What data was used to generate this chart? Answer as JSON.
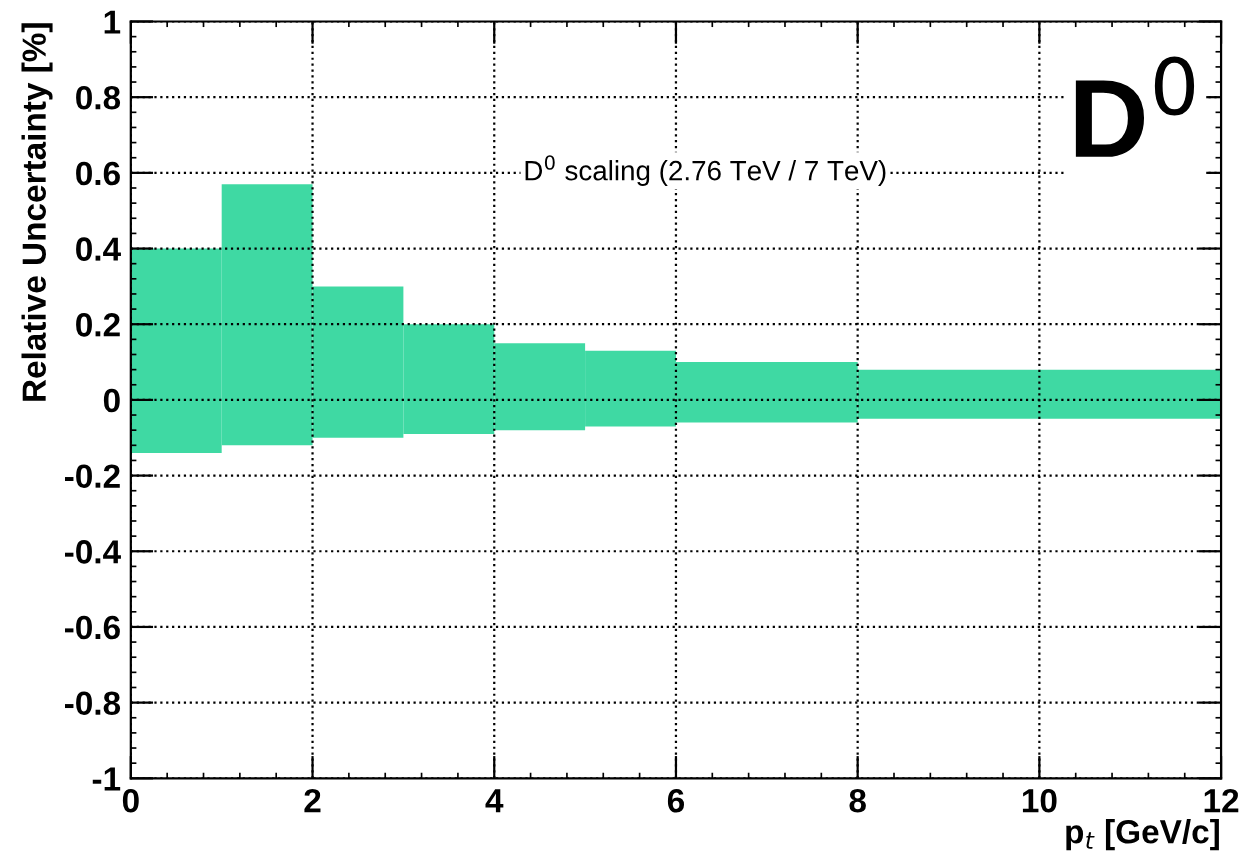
{
  "chart_data": {
    "type": "histogram",
    "bins": [
      0,
      1,
      2,
      3,
      4,
      5,
      6,
      8,
      12
    ],
    "values": [
      0.54,
      0.69,
      0.4,
      0.29,
      0.23,
      0.2,
      0.16,
      0.13
    ],
    "base": [
      -0.14,
      -0.12,
      -0.1,
      -0.09,
      -0.08,
      -0.07,
      -0.06,
      -0.05
    ],
    "color": "#3fd9a3",
    "xlabel": "p$_{t}$ [GeV/c]",
    "ylabel": "Relative Uncertainty [%]",
    "annotations": [
      "D$^{0}$ scaling (2.76 TeV / 7 TeV)",
      "D$^{0}$"
    ],
    "xlim": [
      0,
      12
    ],
    "ylim": [
      -1,
      1
    ],
    "xticks": [
      0,
      2,
      4,
      6,
      8,
      10,
      12
    ],
    "yticks": [
      -1,
      -0.8,
      -0.6,
      -0.4,
      -0.2,
      0,
      0.2,
      0.4,
      0.6,
      0.8,
      1
    ],
    "grid": true
  }
}
